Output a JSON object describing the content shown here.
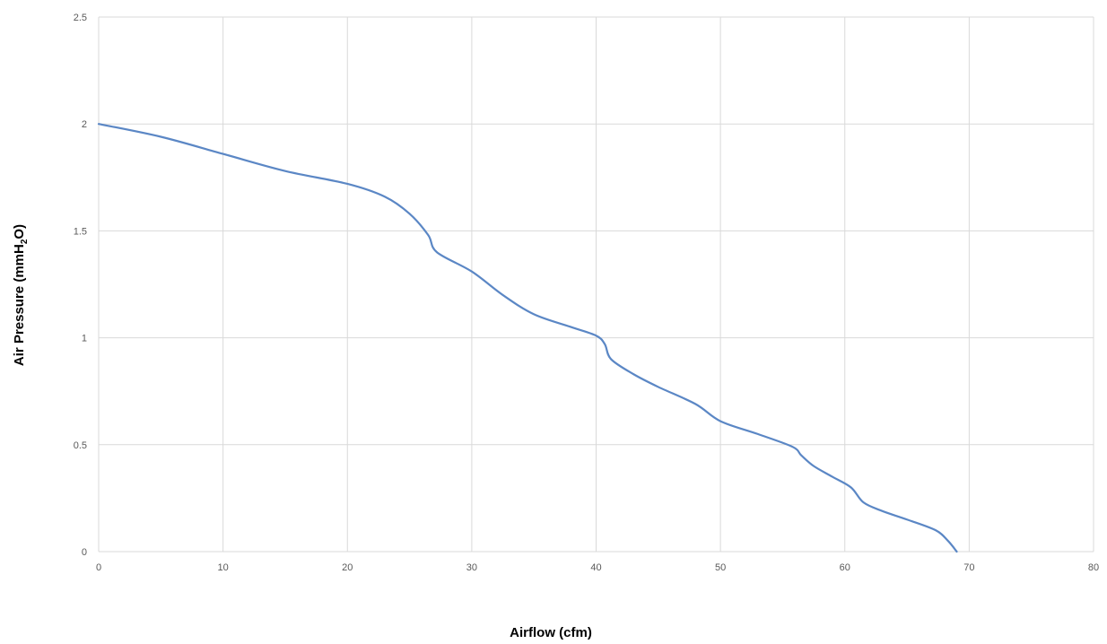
{
  "chart_data": {
    "type": "line",
    "title": "",
    "xlabel": "Airflow (cfm)",
    "ylabel": {
      "main": "Air Pressure (mmH",
      "subscript": "2",
      "suffix": "O)"
    },
    "xlim": [
      0,
      80
    ],
    "ylim": [
      0,
      2.5
    ],
    "x_ticks": [
      "0",
      "10",
      "20",
      "30",
      "40",
      "50",
      "60",
      "70",
      "80"
    ],
    "y_ticks": [
      "0",
      "0.5",
      "1",
      "1.5",
      "2",
      "2.5"
    ],
    "grid": true,
    "legend": "none",
    "series": [
      {
        "color": "#5b87c5",
        "points": [
          [
            0,
            2.0
          ],
          [
            5,
            1.94
          ],
          [
            10,
            1.86
          ],
          [
            15,
            1.78
          ],
          [
            20,
            1.72
          ],
          [
            23,
            1.66
          ],
          [
            25,
            1.58
          ],
          [
            26.5,
            1.48
          ],
          [
            27.2,
            1.4
          ],
          [
            30,
            1.31
          ],
          [
            32.5,
            1.2
          ],
          [
            35,
            1.11
          ],
          [
            38,
            1.05
          ],
          [
            40,
            1.01
          ],
          [
            40.7,
            0.97
          ],
          [
            41.2,
            0.9
          ],
          [
            43,
            0.83
          ],
          [
            45,
            0.77
          ],
          [
            48,
            0.69
          ],
          [
            50,
            0.61
          ],
          [
            53,
            0.55
          ],
          [
            55.8,
            0.49
          ],
          [
            56.5,
            0.45
          ],
          [
            57.5,
            0.4
          ],
          [
            59,
            0.35
          ],
          [
            60.5,
            0.3
          ],
          [
            61.5,
            0.23
          ],
          [
            63,
            0.19
          ],
          [
            65,
            0.15
          ],
          [
            67.3,
            0.1
          ],
          [
            68.3,
            0.05
          ],
          [
            69,
            0.0
          ]
        ]
      }
    ]
  }
}
